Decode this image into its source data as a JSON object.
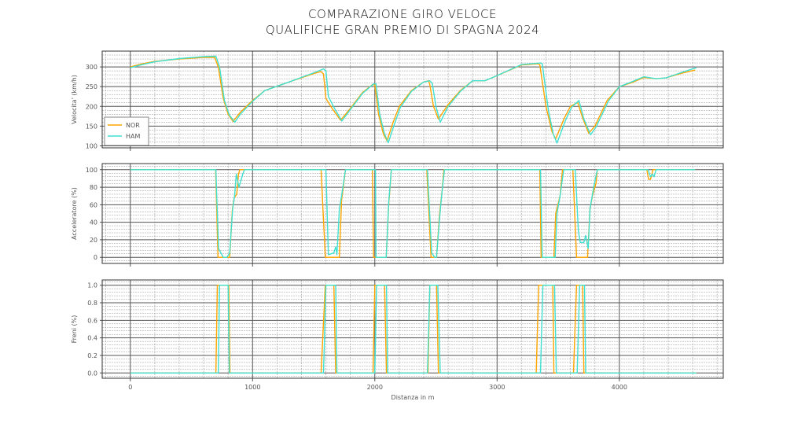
{
  "title": [
    "COMPARAZIONE GIRO VELOCE",
    "QUALIFICHE GRAN PREMIO DI SPAGNA 2024"
  ],
  "colors": {
    "NOR": "#FFA500",
    "HAM": "#40E0D0"
  },
  "chart_data": [
    {
      "type": "line",
      "ylabel": "Velocita' (km/h)",
      "xlim": [
        -230,
        4850
      ],
      "ylim": [
        95,
        340
      ],
      "yticks": [
        100,
        150,
        200,
        250,
        300
      ],
      "grid": true,
      "legend": "bottom-left",
      "series": [
        {
          "name": "NOR",
          "points": [
            [
              0,
              300
            ],
            [
              100,
              308
            ],
            [
              200,
              314
            ],
            [
              400,
              320
            ],
            [
              600,
              324
            ],
            [
              690,
              324
            ],
            [
              720,
              300
            ],
            [
              760,
              220
            ],
            [
              800,
              180
            ],
            [
              840,
              162
            ],
            [
              900,
              185
            ],
            [
              1000,
              215
            ],
            [
              1100,
              240
            ],
            [
              1300,
              262
            ],
            [
              1500,
              283
            ],
            [
              1560,
              288
            ],
            [
              1580,
              282
            ],
            [
              1600,
              220
            ],
            [
              1650,
              195
            ],
            [
              1720,
              165
            ],
            [
              1800,
              195
            ],
            [
              1900,
              235
            ],
            [
              1980,
              255
            ],
            [
              2000,
              255
            ],
            [
              2030,
              180
            ],
            [
              2070,
              130
            ],
            [
              2100,
              113
            ],
            [
              2150,
              160
            ],
            [
              2200,
              200
            ],
            [
              2300,
              240
            ],
            [
              2400,
              262
            ],
            [
              2440,
              265
            ],
            [
              2450,
              255
            ],
            [
              2480,
              200
            ],
            [
              2520,
              168
            ],
            [
              2600,
              205
            ],
            [
              2700,
              240
            ],
            [
              2800,
              265
            ],
            [
              2900,
              265
            ],
            [
              3000,
              278
            ],
            [
              3200,
              305
            ],
            [
              3340,
              308
            ],
            [
              3350,
              305
            ],
            [
              3400,
              200
            ],
            [
              3450,
              135
            ],
            [
              3480,
              118
            ],
            [
              3550,
              170
            ],
            [
              3600,
              200
            ],
            [
              3660,
              210
            ],
            [
              3700,
              170
            ],
            [
              3750,
              132
            ],
            [
              3800,
              150
            ],
            [
              3900,
              215
            ],
            [
              4000,
              250
            ],
            [
              4100,
              260
            ],
            [
              4200,
              273
            ],
            [
              4300,
              270
            ],
            [
              4380,
              272
            ],
            [
              4500,
              283
            ],
            [
              4620,
              292
            ]
          ]
        },
        {
          "name": "HAM",
          "points": [
            [
              0,
              298
            ],
            [
              100,
              306
            ],
            [
              200,
              313
            ],
            [
              400,
              321
            ],
            [
              600,
              326
            ],
            [
              700,
              327
            ],
            [
              730,
              300
            ],
            [
              770,
              215
            ],
            [
              810,
              178
            ],
            [
              855,
              160
            ],
            [
              900,
              180
            ],
            [
              1000,
              213
            ],
            [
              1100,
              240
            ],
            [
              1300,
              262
            ],
            [
              1500,
              285
            ],
            [
              1580,
              295
            ],
            [
              1600,
              290
            ],
            [
              1620,
              225
            ],
            [
              1670,
              195
            ],
            [
              1730,
              163
            ],
            [
              1800,
              192
            ],
            [
              1900,
              233
            ],
            [
              1990,
              257
            ],
            [
              2010,
              257
            ],
            [
              2040,
              180
            ],
            [
              2080,
              130
            ],
            [
              2110,
              108
            ],
            [
              2160,
              155
            ],
            [
              2210,
              198
            ],
            [
              2300,
              238
            ],
            [
              2400,
              262
            ],
            [
              2450,
              265
            ],
            [
              2470,
              258
            ],
            [
              2500,
              200
            ],
            [
              2535,
              160
            ],
            [
              2600,
              200
            ],
            [
              2700,
              238
            ],
            [
              2800,
              265
            ],
            [
              2900,
              265
            ],
            [
              3000,
              278
            ],
            [
              3200,
              306
            ],
            [
              3360,
              310
            ],
            [
              3370,
              308
            ],
            [
              3420,
              190
            ],
            [
              3460,
              130
            ],
            [
              3490,
              107
            ],
            [
              3560,
              165
            ],
            [
              3610,
              198
            ],
            [
              3670,
              215
            ],
            [
              3710,
              168
            ],
            [
              3765,
              128
            ],
            [
              3810,
              148
            ],
            [
              3910,
              213
            ],
            [
              4000,
              250
            ],
            [
              4100,
              262
            ],
            [
              4200,
              275
            ],
            [
              4300,
              270
            ],
            [
              4380,
              272
            ],
            [
              4500,
              285
            ],
            [
              4630,
              298
            ]
          ]
        }
      ]
    },
    {
      "type": "line",
      "ylabel": "Acceleratore (%)",
      "xlim": [
        -230,
        4850
      ],
      "ylim": [
        -7,
        107
      ],
      "yticks": [
        0,
        20,
        40,
        60,
        80,
        100
      ],
      "grid": true,
      "series": [
        {
          "name": "NOR",
          "points": [
            [
              0,
              100
            ],
            [
              698,
              100
            ],
            [
              717,
              0
            ],
            [
              813,
              0
            ],
            [
              835,
              55
            ],
            [
              850,
              68
            ],
            [
              870,
              72
            ],
            [
              885,
              95
            ],
            [
              895,
              100
            ],
            [
              1560,
              100
            ],
            [
              1595,
              0
            ],
            [
              1710,
              0
            ],
            [
              1728,
              65
            ],
            [
              1760,
              100
            ],
            [
              1980,
              100
            ],
            [
              1990,
              0
            ],
            [
              2093,
              0
            ],
            [
              2113,
              60
            ],
            [
              2125,
              80
            ],
            [
              2135,
              100
            ],
            [
              2425,
              100
            ],
            [
              2460,
              0
            ],
            [
              2505,
              0
            ],
            [
              2530,
              50
            ],
            [
              2550,
              75
            ],
            [
              2565,
              100
            ],
            [
              3350,
              100
            ],
            [
              3360,
              0
            ],
            [
              3465,
              0
            ],
            [
              3480,
              50
            ],
            [
              3515,
              70
            ],
            [
              3535,
              100
            ],
            [
              3620,
              100
            ],
            [
              3650,
              0
            ],
            [
              3740,
              0
            ],
            [
              3760,
              55
            ],
            [
              3780,
              70
            ],
            [
              3810,
              85
            ],
            [
              3820,
              100
            ],
            [
              4225,
              100
            ],
            [
              4240,
              89
            ],
            [
              4255,
              89
            ],
            [
              4275,
              100
            ],
            [
              4620,
              100
            ]
          ]
        },
        {
          "name": "HAM",
          "points": [
            [
              0,
              100
            ],
            [
              700,
              100
            ],
            [
              722,
              10
            ],
            [
              760,
              0
            ],
            [
              790,
              0
            ],
            [
              813,
              5
            ],
            [
              837,
              55
            ],
            [
              853,
              70
            ],
            [
              867,
              95
            ],
            [
              889,
              80
            ],
            [
              920,
              95
            ],
            [
              934,
              100
            ],
            [
              1600,
              100
            ],
            [
              1620,
              3
            ],
            [
              1665,
              5
            ],
            [
              1680,
              12
            ],
            [
              1690,
              3
            ],
            [
              1710,
              55
            ],
            [
              1728,
              70
            ],
            [
              1760,
              100
            ],
            [
              2005,
              100
            ],
            [
              2010,
              0
            ],
            [
              2093,
              0
            ],
            [
              2113,
              62
            ],
            [
              2135,
              100
            ],
            [
              2430,
              100
            ],
            [
              2465,
              5
            ],
            [
              2490,
              0
            ],
            [
              2505,
              0
            ],
            [
              2530,
              45
            ],
            [
              2550,
              75
            ],
            [
              2570,
              100
            ],
            [
              3355,
              100
            ],
            [
              3370,
              0
            ],
            [
              3475,
              0
            ],
            [
              3490,
              50
            ],
            [
              3515,
              70
            ],
            [
              3545,
              100
            ],
            [
              3640,
              100
            ],
            [
              3665,
              30
            ],
            [
              3680,
              17
            ],
            [
              3710,
              17
            ],
            [
              3725,
              25
            ],
            [
              3745,
              10
            ],
            [
              3760,
              55
            ],
            [
              3790,
              80
            ],
            [
              3820,
              100
            ],
            [
              4235,
              100
            ],
            [
              4255,
              92
            ],
            [
              4270,
              95
            ],
            [
              4285,
              92
            ],
            [
              4300,
              100
            ],
            [
              4620,
              100
            ]
          ]
        }
      ]
    },
    {
      "type": "line",
      "ylabel": "Freni (%)",
      "xlabel": "Distanza in m",
      "xlim": [
        -230,
        4850
      ],
      "ylim": [
        -0.06,
        1.06
      ],
      "yticks": [
        0.0,
        0.2,
        0.4,
        0.6,
        0.8,
        1.0
      ],
      "xticks": [
        0,
        1000,
        2000,
        3000,
        4000
      ],
      "grid": true,
      "series": [
        {
          "name": "NOR",
          "points": [
            [
              0,
              0
            ],
            [
              700,
              0
            ],
            [
              712,
              1
            ],
            [
              805,
              1
            ],
            [
              815,
              0
            ],
            [
              1560,
              0
            ],
            [
              1595,
              1
            ],
            [
              1665,
              1
            ],
            [
              1680,
              0
            ],
            [
              1985,
              0
            ],
            [
              2000,
              1
            ],
            [
              2080,
              1
            ],
            [
              2095,
              0
            ],
            [
              2435,
              0
            ],
            [
              2450,
              1
            ],
            [
              2505,
              1
            ],
            [
              2520,
              0
            ],
            [
              3320,
              0
            ],
            [
              3340,
              1
            ],
            [
              3455,
              1
            ],
            [
              3465,
              0
            ],
            [
              3625,
              0
            ],
            [
              3650,
              1
            ],
            [
              3700,
              1
            ],
            [
              3710,
              0
            ],
            [
              4630,
              0
            ]
          ]
        },
        {
          "name": "HAM",
          "points": [
            [
              0,
              0
            ],
            [
              720,
              0
            ],
            [
              730,
              1
            ],
            [
              800,
              1
            ],
            [
              810,
              0
            ],
            [
              1580,
              0
            ],
            [
              1600,
              1
            ],
            [
              1680,
              1
            ],
            [
              1690,
              0
            ],
            [
              2000,
              0
            ],
            [
              2015,
              1
            ],
            [
              2095,
              1
            ],
            [
              2105,
              0
            ],
            [
              2430,
              0
            ],
            [
              2450,
              1
            ],
            [
              2515,
              1
            ],
            [
              2535,
              0
            ],
            [
              3355,
              0
            ],
            [
              3375,
              1
            ],
            [
              3470,
              1
            ],
            [
              3485,
              0
            ],
            [
              3655,
              0
            ],
            [
              3675,
              1
            ],
            [
              3715,
              1
            ],
            [
              3725,
              0
            ],
            [
              4630,
              0
            ]
          ]
        }
      ]
    }
  ]
}
